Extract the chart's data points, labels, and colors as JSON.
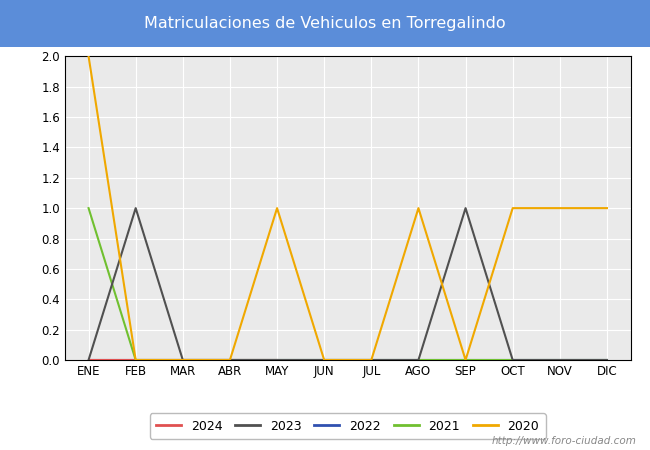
{
  "title": "Matriculaciones de Vehiculos en Torregalindo",
  "title_bgcolor": "#5b8dd9",
  "title_color": "white",
  "months": [
    "ENE",
    "FEB",
    "MAR",
    "ABR",
    "MAY",
    "JUN",
    "JUL",
    "AGO",
    "SEP",
    "OCT",
    "NOV",
    "DIC"
  ],
  "month_indices": [
    1,
    2,
    3,
    4,
    5,
    6,
    7,
    8,
    9,
    10,
    11,
    12
  ],
  "series": {
    "2024": {
      "color": "#e05050",
      "data": [
        0,
        0,
        0,
        0,
        0,
        null,
        null,
        null,
        null,
        null,
        null,
        null
      ]
    },
    "2023": {
      "color": "#505050",
      "data": [
        0,
        1,
        0,
        0,
        0,
        0,
        0,
        0,
        1,
        0,
        0,
        0
      ]
    },
    "2022": {
      "color": "#3050b0",
      "data": [
        0,
        0,
        0,
        0,
        0,
        0,
        0,
        0,
        0,
        0,
        0,
        0
      ]
    },
    "2021": {
      "color": "#70c030",
      "data": [
        1,
        0,
        0,
        0,
        0,
        0,
        0,
        0,
        0,
        0,
        0,
        0
      ]
    },
    "2020": {
      "color": "#f0a800",
      "data": [
        2,
        0,
        0,
        0,
        1,
        0,
        0,
        1,
        0,
        1,
        1,
        1
      ]
    }
  },
  "ylim": [
    0,
    2.0
  ],
  "yticks": [
    0.0,
    0.2,
    0.4,
    0.6,
    0.8,
    1.0,
    1.2,
    1.4,
    1.6,
    1.8,
    2.0
  ],
  "grid_color": "#ffffff",
  "plot_bg_color": "#eaeaea",
  "fig_bg_color": "#ffffff",
  "legend_order": [
    "2024",
    "2023",
    "2022",
    "2021",
    "2020"
  ],
  "watermark": "http://www.foro-ciudad.com",
  "linewidth": 1.5
}
